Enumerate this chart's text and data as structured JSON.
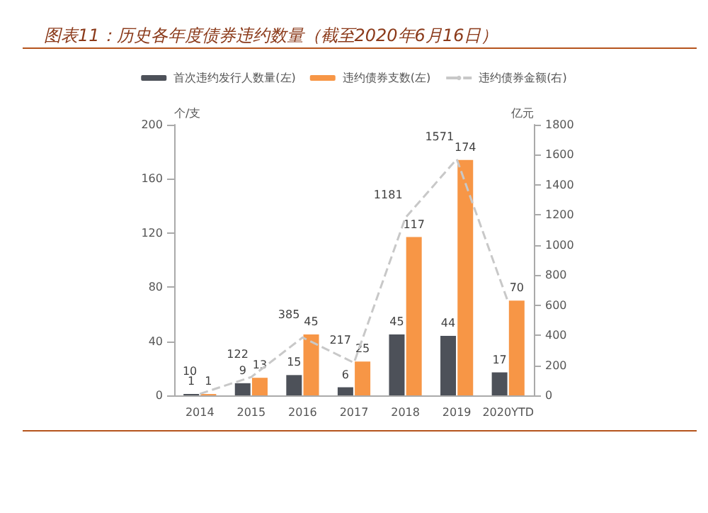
{
  "chart_data": {
    "type": "bar",
    "title": "图表11：历史各年度债券违约数量（截至2020年6月16日）",
    "ylabel": "个/支",
    "y2label": "亿元",
    "categories": [
      "2014",
      "2015",
      "2016",
      "2017",
      "2018",
      "2019",
      "2020YTD"
    ],
    "series": [
      {
        "name": "首次违约发行人数量(左)",
        "color": "#4d5159",
        "values": [
          1,
          9,
          15,
          6,
          45,
          44,
          17
        ],
        "value_labels": [
          "1",
          "9",
          "15",
          "6",
          "45",
          "44",
          "17"
        ]
      },
      {
        "name": "违约债券支数(左)",
        "color": "#f79646",
        "values": [
          1,
          13,
          45,
          25,
          117,
          174,
          70
        ],
        "value_labels": [
          "1",
          "13",
          "45",
          "25",
          "117",
          "174",
          "70"
        ]
      },
      {
        "name": "违约债券金额(右)",
        "type": "line",
        "axis": "y2",
        "color": "#c8c8c8",
        "line_style": "dashed",
        "marker": "none",
        "values": [
          10,
          122,
          385,
          217,
          1181,
          1571,
          620
        ],
        "value_labels": [
          "10",
          "122",
          "385",
          "217",
          "1181",
          "1571",
          null
        ]
      }
    ],
    "ylim": [
      0,
      200
    ],
    "yticks": [
      0,
      40,
      80,
      120,
      160,
      200
    ],
    "y2lim": [
      0,
      1800
    ],
    "y2ticks": [
      0,
      200,
      400,
      600,
      800,
      1000,
      1200,
      1400,
      1600,
      1800
    ],
    "grid": false,
    "legend": "top"
  }
}
